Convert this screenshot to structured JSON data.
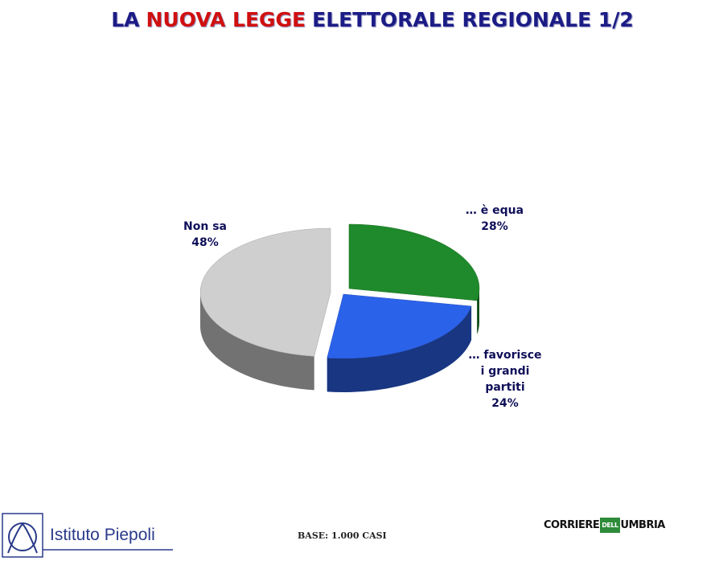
{
  "chart_data": {
    "type": "pie",
    "title": [
      {
        "text": "LA",
        "color": "#1c1c86"
      },
      {
        "text": "NUOVA LEGGE",
        "color": "#d01010"
      },
      {
        "text": "ELETTORALE REGIONALE 1/2",
        "color": "#1c1c86"
      }
    ],
    "categories": [
      "… è equa",
      "… favorisce i grandi partiti",
      "Non sa"
    ],
    "values": [
      28,
      24,
      48
    ],
    "value_labels": [
      "28%",
      "24%",
      "48%"
    ],
    "colors": [
      "#1f8a2b",
      "#2b62ea",
      "#cfcfcf"
    ]
  },
  "footer": {
    "base": "BASE: 1.000 CASI",
    "logo_left": "Istituto Piepoli",
    "logo_right": [
      "CORRIERE",
      "DELL",
      "UMBRIA"
    ]
  }
}
